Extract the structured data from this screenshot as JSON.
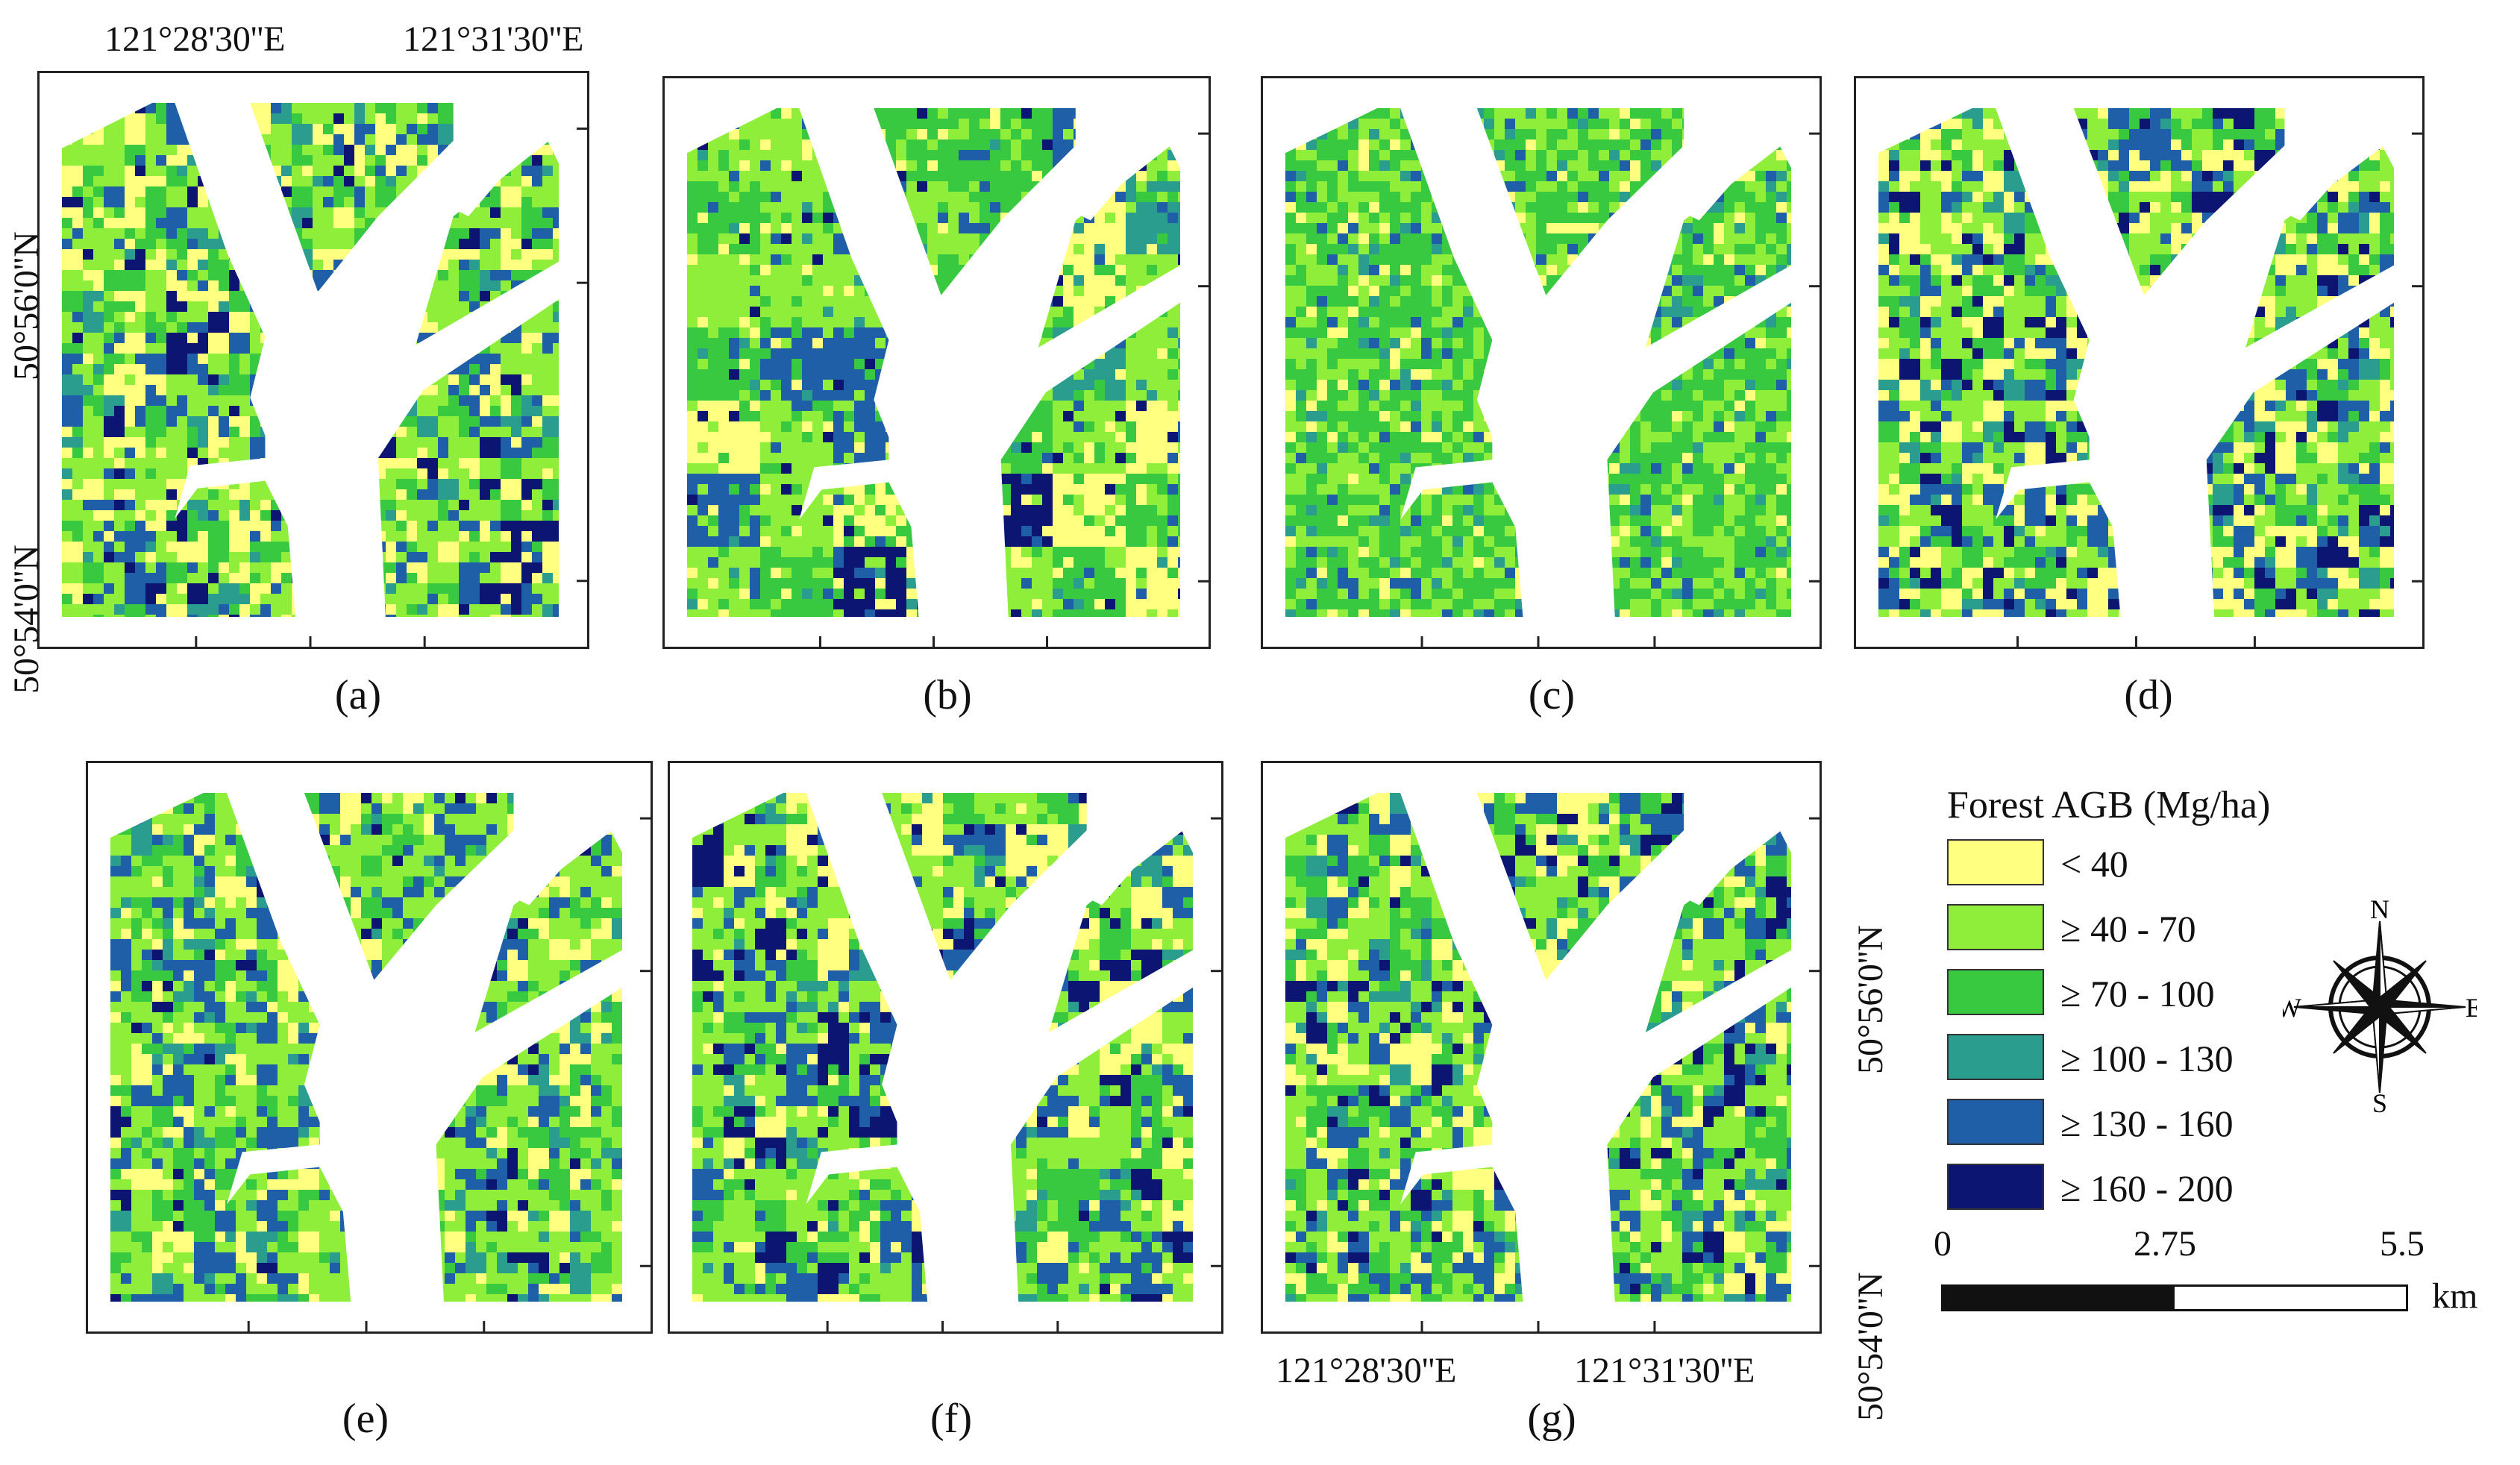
{
  "panels": [
    {
      "label": "(a)",
      "seed": 11,
      "mix": [
        0.24,
        0.34,
        0.16,
        0.06,
        0.14,
        0.06
      ],
      "patch": 9
    },
    {
      "label": "(b)",
      "seed": 23,
      "mix": [
        0.17,
        0.3,
        0.27,
        0.06,
        0.12,
        0.08
      ],
      "patch": 26
    },
    {
      "label": "(c)",
      "seed": 37,
      "mix": [
        0.07,
        0.34,
        0.46,
        0.08,
        0.05,
        0.0
      ],
      "patch": 5
    },
    {
      "label": "(d)",
      "seed": 41,
      "mix": [
        0.22,
        0.29,
        0.16,
        0.08,
        0.16,
        0.09
      ],
      "patch": 8
    },
    {
      "label": "(e)",
      "seed": 53,
      "mix": [
        0.12,
        0.42,
        0.18,
        0.07,
        0.17,
        0.04
      ],
      "patch": 9
    },
    {
      "label": "(f)",
      "seed": 67,
      "mix": [
        0.15,
        0.34,
        0.19,
        0.06,
        0.17,
        0.09
      ],
      "patch": 12
    },
    {
      "label": "(g)",
      "seed": 79,
      "mix": [
        0.16,
        0.32,
        0.2,
        0.08,
        0.15,
        0.09
      ],
      "patch": 8
    }
  ],
  "coords": {
    "lon_left": "121°28'30''E",
    "lon_right": "121°31'30''E",
    "lat_top": "50°56'0''N",
    "lat_bottom": "50°54'0''N"
  },
  "legend": {
    "title": "Forest AGB (Mg/ha)",
    "classes": [
      {
        "label": "< 40",
        "color": "#ffff80"
      },
      {
        "label": "≥ 40 - 70",
        "color": "#8eee3a"
      },
      {
        "label": "≥ 70 - 100",
        "color": "#38c940"
      },
      {
        "label": "≥ 100 - 130",
        "color": "#2a9d8f"
      },
      {
        "label": "≥ 130 - 160",
        "color": "#1f5fa8"
      },
      {
        "label": "≥ 160 - 200",
        "color": "#0d1572"
      }
    ]
  },
  "compass": {
    "n": "N",
    "e": "E",
    "s": "S",
    "w": "W"
  },
  "scale": {
    "labels": [
      "0",
      "2.75",
      "5.5"
    ],
    "unit": "km"
  }
}
